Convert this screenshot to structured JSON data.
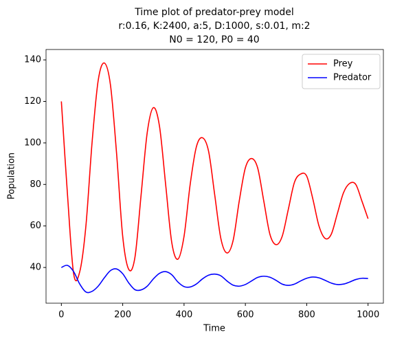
{
  "chart_data": {
    "type": "line",
    "title": [
      "Time plot of predator-prey model",
      "r:0.16, K:2400, a:5, D:1000, s:0.01, m:2",
      "N0 = 120, P0 = 40"
    ],
    "x_label": "Time",
    "y_label": "Population",
    "x": [
      0,
      20,
      40,
      60,
      80,
      100,
      120,
      140,
      160,
      180,
      200,
      220,
      240,
      260,
      280,
      300,
      320,
      340,
      360,
      380,
      400,
      420,
      440,
      460,
      480,
      500,
      520,
      540,
      560,
      580,
      600,
      620,
      640,
      660,
      680,
      700,
      720,
      740,
      760,
      780,
      800,
      820,
      840,
      860,
      880,
      900,
      920,
      940,
      960,
      980,
      1000
    ],
    "series": [
      {
        "name": "Prey",
        "color": "#ff0000",
        "values": [
          120,
          75,
          37,
          38,
          60,
          100,
          130,
          138.5,
          128,
          95,
          55,
          39,
          45,
          75,
          105,
          117,
          108,
          80,
          52,
          44,
          55,
          80,
          98,
          102.5,
          96,
          75,
          54,
          47,
          53,
          72,
          88,
          92.5,
          88,
          72,
          56,
          51,
          55,
          68,
          81,
          85,
          84,
          73,
          60,
          54,
          56,
          66,
          76,
          80.5,
          80,
          72,
          63.5
        ]
      },
      {
        "name": "Predator",
        "color": "#0000ff",
        "values": [
          40,
          41,
          38,
          32,
          28.2,
          28.5,
          31,
          35,
          38.5,
          39.3,
          37,
          32.5,
          29.3,
          29.2,
          31,
          34.5,
          37.2,
          38,
          36.5,
          33,
          30.8,
          30.6,
          32,
          34.5,
          36.3,
          36.8,
          36,
          33.5,
          31.5,
          31,
          31.8,
          33.5,
          35.2,
          35.8,
          35.3,
          33.8,
          32,
          31.4,
          32,
          33.5,
          34.8,
          35.4,
          35,
          33.8,
          32.5,
          31.8,
          32,
          33,
          34.2,
          34.8,
          34.7
        ]
      }
    ],
    "xlim": [
      -50,
      1050
    ],
    "ylim": [
      22.8,
      145
    ],
    "xticks": [
      0,
      200,
      400,
      600,
      800,
      1000
    ],
    "yticks": [
      40,
      60,
      80,
      100,
      120,
      140
    ],
    "legend": "upper right",
    "grid": false
  }
}
